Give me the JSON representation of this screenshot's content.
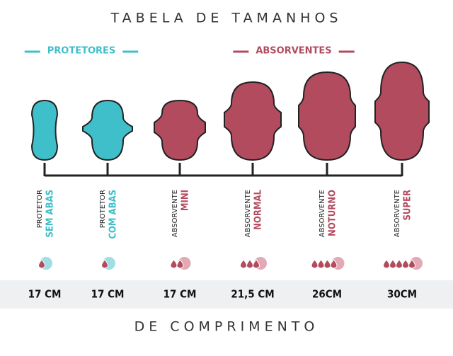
{
  "title": "TABELA DE TAMANHOS",
  "groups": [
    {
      "label": "PROTETORES",
      "color": "#3ebfca"
    },
    {
      "label": "ABSORVENTES",
      "color": "#b34b5f"
    }
  ],
  "items": [
    {
      "line1": "PROTETOR",
      "line2": "SEM ABAS",
      "group": 0,
      "drops": 1,
      "length": "17 CM"
    },
    {
      "line1": "PROTETOR",
      "line2": "COM ABAS",
      "group": 0,
      "drops": 1,
      "length": "17 CM"
    },
    {
      "line1": "ABSORVENTE",
      "line2": "MINI",
      "group": 1,
      "drops": 2,
      "length": "17 CM"
    },
    {
      "line1": "ABSORVENTE",
      "line2": "NORMAL",
      "group": 1,
      "drops": 3,
      "length": "21,5 CM"
    },
    {
      "line1": "ABSORVENTE",
      "line2": "NOTURNO",
      "group": 1,
      "drops": 4,
      "length": "26CM"
    },
    {
      "line1": "ABSORVENTE",
      "line2": "SUPER",
      "group": 1,
      "drops": 5,
      "length": "30CM"
    }
  ],
  "footer": "DE COMPRIMENTO"
}
